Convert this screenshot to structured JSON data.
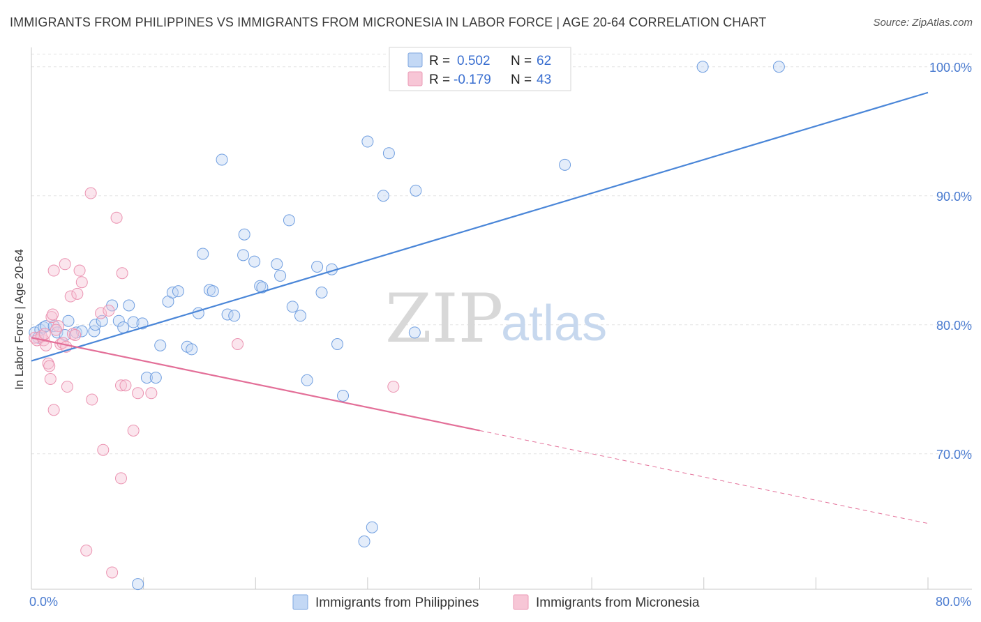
{
  "title": "IMMIGRANTS FROM PHILIPPINES VS IMMIGRANTS FROM MICRONESIA IN LABOR FORCE | AGE 20-64 CORRELATION CHART",
  "source": "Source: ZipAtlas.com",
  "watermark": {
    "zip": "ZIP",
    "atlas": "atlas"
  },
  "colors": {
    "philippines": "#4a86d8",
    "philippines_fill": "#c3d8f5",
    "micronesia": "#e36f98",
    "micronesia_fill": "#f7c6d6",
    "axis_text": "#4a7bd0",
    "grid": "#e3e3e3"
  },
  "legend": {
    "rows": [
      {
        "r_label": "R =",
        "r_value": "0.502",
        "n_label": "N =",
        "n_value": "62"
      },
      {
        "r_label": "R =",
        "r_value": "-0.179",
        "n_label": "N =",
        "n_value": "43"
      }
    ]
  },
  "chart_data": {
    "type": "scatter",
    "title": "IMMIGRANTS FROM PHILIPPINES VS IMMIGRANTS FROM MICRONESIA IN LABOR FORCE | AGE 20-64 CORRELATION CHART",
    "xlabel": "",
    "ylabel": "In Labor Force | Age 20-64",
    "xlim": [
      0,
      80
    ],
    "ylim": [
      59.5,
      101.5
    ],
    "x_tick_labels": [
      "0.0%",
      "80.0%"
    ],
    "y_ticks": [
      70,
      80,
      90,
      100
    ],
    "y_tick_labels": [
      "70.0%",
      "80.0%",
      "90.0%",
      "100.0%"
    ],
    "grid": true,
    "legend_position": "top-center",
    "series": [
      {
        "name": "Immigrants from Philippines",
        "color": "#4a86d8",
        "r": 0.502,
        "n": 62,
        "trend": {
          "x": [
            0,
            80
          ],
          "y": [
            77.2,
            98.0
          ],
          "dashed_from": null
        },
        "points": [
          [
            0.3,
            79.4
          ],
          [
            0.8,
            79.6
          ],
          [
            1.1,
            79.8
          ],
          [
            1.3,
            79.9
          ],
          [
            2.0,
            79.9
          ],
          [
            2.3,
            79.4
          ],
          [
            3.0,
            79.2
          ],
          [
            3.3,
            80.3
          ],
          [
            4.0,
            79.4
          ],
          [
            4.5,
            79.5
          ],
          [
            5.6,
            79.5
          ],
          [
            5.7,
            80.0
          ],
          [
            6.3,
            80.3
          ],
          [
            7.2,
            81.5
          ],
          [
            7.8,
            80.3
          ],
          [
            8.2,
            79.8
          ],
          [
            8.7,
            81.5
          ],
          [
            9.1,
            80.2
          ],
          [
            9.5,
            59.9
          ],
          [
            9.9,
            80.1
          ],
          [
            10.3,
            75.9
          ],
          [
            11.1,
            75.9
          ],
          [
            11.5,
            78.4
          ],
          [
            12.2,
            81.8
          ],
          [
            12.6,
            82.5
          ],
          [
            13.1,
            82.6
          ],
          [
            13.9,
            78.3
          ],
          [
            14.3,
            78.1
          ],
          [
            14.9,
            80.9
          ],
          [
            15.3,
            85.5
          ],
          [
            15.9,
            82.7
          ],
          [
            16.2,
            82.6
          ],
          [
            17.0,
            92.8
          ],
          [
            17.5,
            80.8
          ],
          [
            18.1,
            80.7
          ],
          [
            18.9,
            85.4
          ],
          [
            19.0,
            87.0
          ],
          [
            19.9,
            84.9
          ],
          [
            20.4,
            83.0
          ],
          [
            20.6,
            82.9
          ],
          [
            21.9,
            84.7
          ],
          [
            22.2,
            83.8
          ],
          [
            23.0,
            88.1
          ],
          [
            23.3,
            81.4
          ],
          [
            24.0,
            80.7
          ],
          [
            24.6,
            75.7
          ],
          [
            25.5,
            84.5
          ],
          [
            25.9,
            82.5
          ],
          [
            26.8,
            84.3
          ],
          [
            27.3,
            78.5
          ],
          [
            27.8,
            74.5
          ],
          [
            30.0,
            94.2
          ],
          [
            30.4,
            64.3
          ],
          [
            29.7,
            63.2
          ],
          [
            31.4,
            90.0
          ],
          [
            31.9,
            93.3
          ],
          [
            34.3,
            90.4
          ],
          [
            34.2,
            79.4
          ],
          [
            47.6,
            92.4
          ],
          [
            59.9,
            100.0
          ],
          [
            66.7,
            100.0
          ],
          [
            0.6,
            79.0
          ]
        ]
      },
      {
        "name": "Immigrants from Micronesia",
        "color": "#e36f98",
        "r": -0.179,
        "n": 43,
        "trend": {
          "x": [
            0,
            80
          ],
          "y": [
            79.0,
            64.6
          ],
          "dashed_from": 40
        },
        "points": [
          [
            0.3,
            79.0
          ],
          [
            0.5,
            78.8
          ],
          [
            1.1,
            78.8
          ],
          [
            1.3,
            78.4
          ],
          [
            1.5,
            77.0
          ],
          [
            1.6,
            76.8
          ],
          [
            1.7,
            75.8
          ],
          [
            1.8,
            80.6
          ],
          [
            1.9,
            80.8
          ],
          [
            2.0,
            84.2
          ],
          [
            2.0,
            73.4
          ],
          [
            2.4,
            79.9
          ],
          [
            2.6,
            78.5
          ],
          [
            2.8,
            78.6
          ],
          [
            3.0,
            84.7
          ],
          [
            3.1,
            78.3
          ],
          [
            3.2,
            75.2
          ],
          [
            3.5,
            82.2
          ],
          [
            3.7,
            79.3
          ],
          [
            3.9,
            79.2
          ],
          [
            4.1,
            82.4
          ],
          [
            4.3,
            84.2
          ],
          [
            4.5,
            83.3
          ],
          [
            4.9,
            62.5
          ],
          [
            5.3,
            90.2
          ],
          [
            5.4,
            74.2
          ],
          [
            6.2,
            80.9
          ],
          [
            6.4,
            70.3
          ],
          [
            6.9,
            81.1
          ],
          [
            7.2,
            60.8
          ],
          [
            7.6,
            88.3
          ],
          [
            8.0,
            75.3
          ],
          [
            8.0,
            68.1
          ],
          [
            8.1,
            84.0
          ],
          [
            8.4,
            75.3
          ],
          [
            9.1,
            71.8
          ],
          [
            9.5,
            74.7
          ],
          [
            10.7,
            74.7
          ],
          [
            18.4,
            78.5
          ],
          [
            32.3,
            75.2
          ],
          [
            0.9,
            79.1
          ],
          [
            1.2,
            79.3
          ],
          [
            2.2,
            79.6
          ]
        ]
      }
    ]
  },
  "bottom_legend": [
    {
      "label": "Immigrants from Philippines"
    },
    {
      "label": "Immigrants from Micronesia"
    }
  ]
}
